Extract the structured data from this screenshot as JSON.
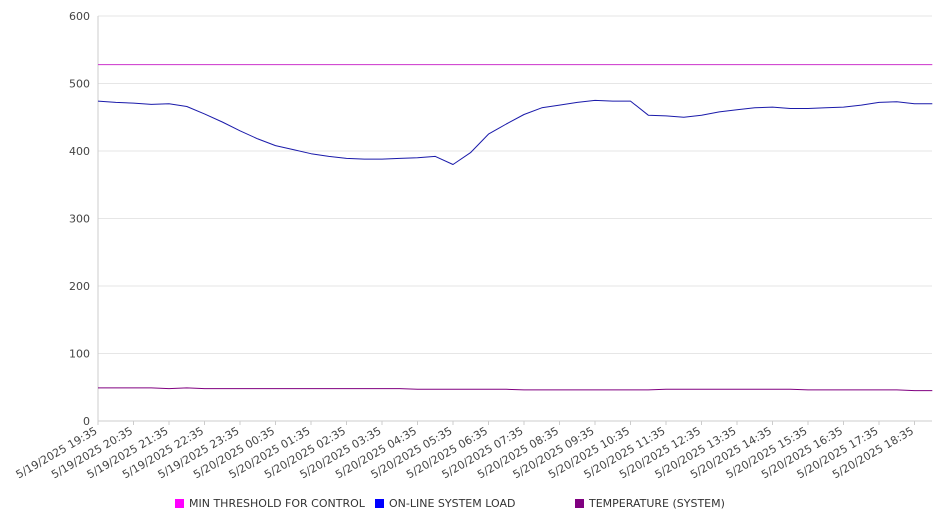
{
  "chart_data": {
    "type": "line",
    "title": "",
    "xlabel": "",
    "ylabel": "",
    "ylim": [
      0,
      600
    ],
    "yticks": [
      "0",
      "100",
      "200",
      "300",
      "400",
      "500",
      "600"
    ],
    "grid": "horizontal",
    "legend_position": "bottom",
    "x_ticks": [
      "5/19/2025 19:35",
      "5/19/2025 20:35",
      "5/19/2025 21:35",
      "5/19/2025 22:35",
      "5/19/2025 23:35",
      "5/20/2025 00:35",
      "5/20/2025 01:35",
      "5/20/2025 02:35",
      "5/20/2025 03:35",
      "5/20/2025 04:35",
      "5/20/2025 05:35",
      "5/20/2025 06:35",
      "5/20/2025 07:35",
      "5/20/2025 08:35",
      "5/20/2025 09:35",
      "5/20/2025 10:35",
      "5/20/2025 11:35",
      "5/20/2025 12:35",
      "5/20/2025 13:35",
      "5/20/2025 14:35",
      "5/20/2025 15:35",
      "5/20/2025 16:35",
      "5/20/2025 17:35",
      "5/20/2025 18:35"
    ],
    "x": [
      "5/19/2025 19:35",
      "5/19/2025 20:05",
      "5/19/2025 20:35",
      "5/19/2025 21:05",
      "5/19/2025 21:35",
      "5/19/2025 22:05",
      "5/19/2025 22:35",
      "5/19/2025 23:05",
      "5/19/2025 23:35",
      "5/20/2025 00:05",
      "5/20/2025 00:35",
      "5/20/2025 01:05",
      "5/20/2025 01:35",
      "5/20/2025 02:05",
      "5/20/2025 02:35",
      "5/20/2025 03:05",
      "5/20/2025 03:35",
      "5/20/2025 04:05",
      "5/20/2025 04:35",
      "5/20/2025 05:05",
      "5/20/2025 05:35",
      "5/20/2025 06:05",
      "5/20/2025 06:35",
      "5/20/2025 07:05",
      "5/20/2025 07:35",
      "5/20/2025 08:05",
      "5/20/2025 08:35",
      "5/20/2025 09:05",
      "5/20/2025 09:35",
      "5/20/2025 10:05",
      "5/20/2025 10:35",
      "5/20/2025 11:05",
      "5/20/2025 11:35",
      "5/20/2025 12:05",
      "5/20/2025 12:35",
      "5/20/2025 13:05",
      "5/20/2025 13:35",
      "5/20/2025 14:05",
      "5/20/2025 14:35",
      "5/20/2025 15:05",
      "5/20/2025 15:35",
      "5/20/2025 16:05",
      "5/20/2025 16:35",
      "5/20/2025 17:05",
      "5/20/2025 17:35",
      "5/20/2025 18:05",
      "5/20/2025 18:35",
      "5/20/2025 19:05"
    ],
    "series": [
      {
        "name": "MIN THRESHOLD FOR CONTROL",
        "color": "#cc33cc",
        "swatch_color": "#ff00ff",
        "values": [
          528,
          528,
          528,
          528,
          528,
          528,
          528,
          528,
          528,
          528,
          528,
          528,
          528,
          528,
          528,
          528,
          528,
          528,
          528,
          528,
          528,
          528,
          528,
          528,
          528,
          528,
          528,
          528,
          528,
          528,
          528,
          528,
          528,
          528,
          528,
          528,
          528,
          528,
          528,
          528,
          528,
          528,
          528,
          528,
          528,
          528,
          528,
          528
        ]
      },
      {
        "name": "ON-LINE SYSTEM LOAD",
        "color": "#1a1aaa",
        "swatch_color": "#0000ff",
        "values": [
          474,
          472,
          471,
          469,
          470,
          466,
          455,
          443,
          430,
          418,
          408,
          402,
          396,
          392,
          389,
          388,
          388,
          389,
          390,
          392,
          380,
          398,
          425,
          440,
          454,
          464,
          468,
          472,
          475,
          474,
          474,
          453,
          452,
          450,
          453,
          458,
          461,
          464,
          465,
          463,
          463,
          464,
          465,
          468,
          472,
          473,
          470,
          470
        ]
      },
      {
        "name": "TEMPERATURE (SYSTEM)",
        "color": "#800080",
        "swatch_color": "#800080",
        "values": [
          49,
          49,
          49,
          49,
          48,
          49,
          48,
          48,
          48,
          48,
          48,
          48,
          48,
          48,
          48,
          48,
          48,
          48,
          47,
          47,
          47,
          47,
          47,
          47,
          46,
          46,
          46,
          46,
          46,
          46,
          46,
          46,
          47,
          47,
          47,
          47,
          47,
          47,
          47,
          47,
          46,
          46,
          46,
          46,
          46,
          46,
          45,
          45
        ]
      }
    ]
  }
}
